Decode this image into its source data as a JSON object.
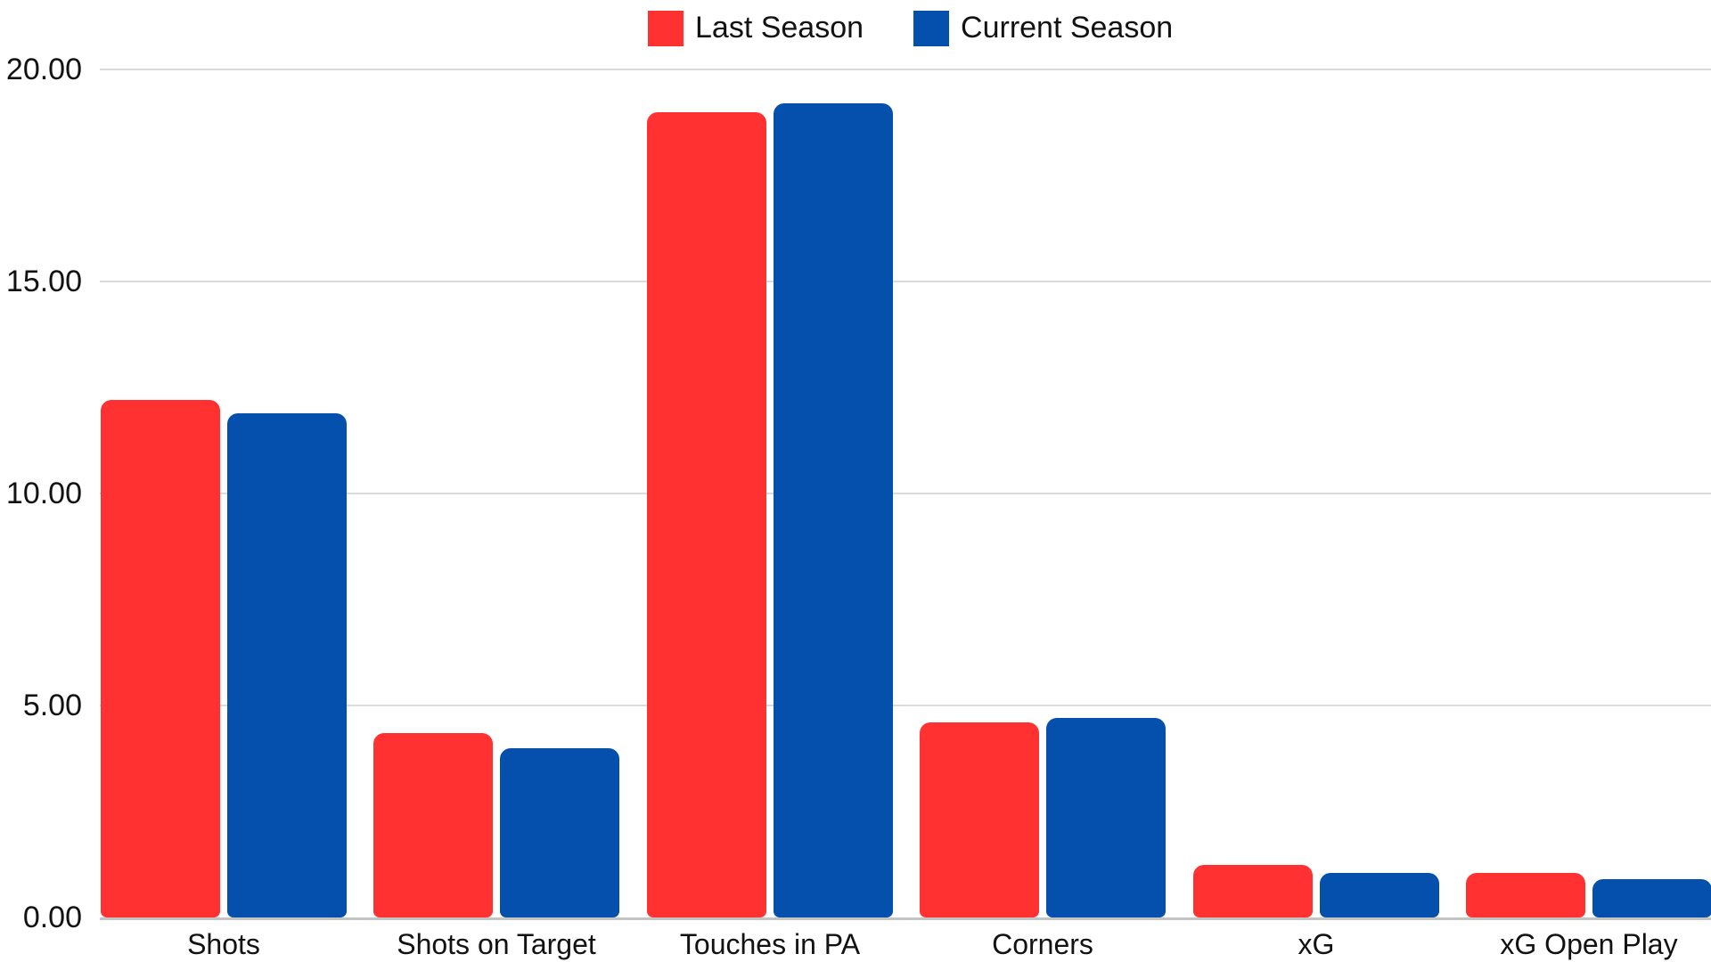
{
  "chart_data": {
    "type": "bar",
    "title": "",
    "categories": [
      "Shots",
      "Shots on Target",
      "Touches in PA",
      "Corners",
      "xG",
      "xG Open Play"
    ],
    "series": [
      {
        "name": "Last Season",
        "color": "#FF3131",
        "values": [
          12.2,
          4.35,
          19.0,
          4.6,
          1.25,
          1.05
        ]
      },
      {
        "name": "Current Season",
        "color": "#0450AC",
        "values": [
          11.9,
          4.0,
          19.2,
          4.7,
          1.05,
          0.9
        ]
      }
    ],
    "y_axis": {
      "min": 0,
      "max": 20,
      "tick_step": 5,
      "ticks": [
        {
          "value": 0,
          "label": "0.00"
        },
        {
          "value": 5,
          "label": "5.00"
        },
        {
          "value": 10,
          "label": "10.00"
        },
        {
          "value": 15,
          "label": "15.00"
        },
        {
          "value": 20,
          "label": "20.00"
        }
      ]
    },
    "legend_position": "top-center",
    "grid": true,
    "colors": {
      "last_season": "#FF3131",
      "current_season": "#0450AC",
      "gridline": "#DBDBDB",
      "axis_line": "#C4C4C4",
      "text": "#121212",
      "background": "#FFFFFF"
    }
  }
}
